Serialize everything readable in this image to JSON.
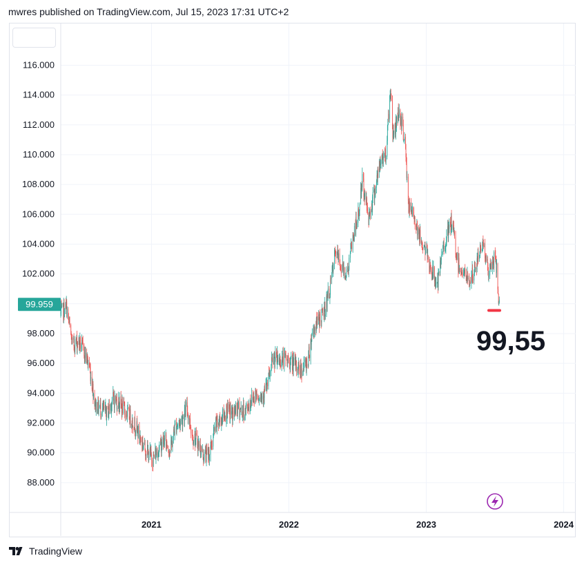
{
  "header": {
    "text": "mwres published on TradingView.com, Jul 15, 2023 17:31 UTC+2"
  },
  "footer": {
    "brand": "TradingView",
    "logo_icon": "tradingview-logo-icon"
  },
  "colors": {
    "up": "#26a69a",
    "down": "#ef5350",
    "last_price_bg": "#26a69a",
    "marker": "#f23645",
    "grid": "#f0f3fa",
    "lightning": "#9c27b0"
  },
  "chart_data": {
    "type": "candlestick",
    "title": "",
    "xlabel": "",
    "ylabel": "",
    "y_ticks": [
      "88.000",
      "90.000",
      "92.000",
      "94.000",
      "96.000",
      "98.000",
      "102.000",
      "104.000",
      "106.000",
      "108.000",
      "110.000",
      "112.000",
      "114.000",
      "116.000"
    ],
    "y_tick_values": [
      88,
      90,
      92,
      94,
      96,
      98,
      102,
      104,
      106,
      108,
      110,
      112,
      114,
      116
    ],
    "x_ticks": [
      "2021",
      "2022",
      "2023",
      "2024"
    ],
    "x_tick_values": [
      "2021-01-01",
      "2022-01-01",
      "2023-01-01",
      "2024-01-01"
    ],
    "ylim": [
      86.0,
      118.8
    ],
    "xlim": [
      "2020-05-05",
      "2024-02-02"
    ],
    "grid": true,
    "last_price": {
      "label": "99.959",
      "value": 99.959
    },
    "annotation": {
      "text": "99,55",
      "value": 99.55
    },
    "series": [
      {
        "frequency": "daily",
        "path": [
          {
            "date": "2020-05-05",
            "value": 99.3
          },
          {
            "date": "2020-05-20",
            "value": 99.8
          },
          {
            "date": "2020-06-05",
            "value": 97.2
          },
          {
            "date": "2020-06-20",
            "value": 97.5
          },
          {
            "date": "2020-07-05",
            "value": 96.9
          },
          {
            "date": "2020-07-20",
            "value": 95.8
          },
          {
            "date": "2020-08-05",
            "value": 93.2
          },
          {
            "date": "2020-08-20",
            "value": 93.0
          },
          {
            "date": "2020-09-05",
            "value": 92.6
          },
          {
            "date": "2020-09-20",
            "value": 93.6
          },
          {
            "date": "2020-10-05",
            "value": 93.4
          },
          {
            "date": "2020-10-20",
            "value": 92.9
          },
          {
            "date": "2020-11-05",
            "value": 92.4
          },
          {
            "date": "2020-11-20",
            "value": 91.8
          },
          {
            "date": "2020-12-05",
            "value": 90.8
          },
          {
            "date": "2020-12-20",
            "value": 90.1
          },
          {
            "date": "2021-01-05",
            "value": 89.6
          },
          {
            "date": "2021-01-20",
            "value": 90.3
          },
          {
            "date": "2021-02-05",
            "value": 90.9
          },
          {
            "date": "2021-02-20",
            "value": 90.1
          },
          {
            "date": "2021-03-05",
            "value": 91.8
          },
          {
            "date": "2021-03-20",
            "value": 92.1
          },
          {
            "date": "2021-04-05",
            "value": 93.0
          },
          {
            "date": "2021-04-20",
            "value": 91.2
          },
          {
            "date": "2021-05-05",
            "value": 90.6
          },
          {
            "date": "2021-05-20",
            "value": 89.8
          },
          {
            "date": "2021-06-05",
            "value": 90.0
          },
          {
            "date": "2021-06-20",
            "value": 91.8
          },
          {
            "date": "2021-07-05",
            "value": 92.3
          },
          {
            "date": "2021-07-20",
            "value": 92.8
          },
          {
            "date": "2021-08-05",
            "value": 92.6
          },
          {
            "date": "2021-08-20",
            "value": 93.0
          },
          {
            "date": "2021-09-05",
            "value": 92.7
          },
          {
            "date": "2021-09-20",
            "value": 93.4
          },
          {
            "date": "2021-10-05",
            "value": 94.0
          },
          {
            "date": "2021-10-20",
            "value": 93.8
          },
          {
            "date": "2021-11-05",
            "value": 94.5
          },
          {
            "date": "2021-11-20",
            "value": 96.3
          },
          {
            "date": "2021-12-05",
            "value": 96.2
          },
          {
            "date": "2021-12-20",
            "value": 96.3
          },
          {
            "date": "2022-01-05",
            "value": 96.1
          },
          {
            "date": "2022-01-20",
            "value": 95.8
          },
          {
            "date": "2022-02-05",
            "value": 95.6
          },
          {
            "date": "2022-02-20",
            "value": 96.1
          },
          {
            "date": "2022-03-05",
            "value": 98.2
          },
          {
            "date": "2022-03-20",
            "value": 98.8
          },
          {
            "date": "2022-04-05",
            "value": 99.5
          },
          {
            "date": "2022-04-20",
            "value": 101.0
          },
          {
            "date": "2022-05-05",
            "value": 103.5
          },
          {
            "date": "2022-05-20",
            "value": 102.5
          },
          {
            "date": "2022-06-05",
            "value": 102.0
          },
          {
            "date": "2022-06-20",
            "value": 104.4
          },
          {
            "date": "2022-07-05",
            "value": 106.0
          },
          {
            "date": "2022-07-15",
            "value": 108.3
          },
          {
            "date": "2022-08-01",
            "value": 105.8
          },
          {
            "date": "2022-08-20",
            "value": 108.0
          },
          {
            "date": "2022-09-05",
            "value": 109.8
          },
          {
            "date": "2022-09-15",
            "value": 110.0
          },
          {
            "date": "2022-09-28",
            "value": 114.5
          },
          {
            "date": "2022-10-05",
            "value": 111.2
          },
          {
            "date": "2022-10-20",
            "value": 113.0
          },
          {
            "date": "2022-11-05",
            "value": 111.0
          },
          {
            "date": "2022-11-15",
            "value": 106.5
          },
          {
            "date": "2022-12-01",
            "value": 105.8
          },
          {
            "date": "2022-12-15",
            "value": 104.4
          },
          {
            "date": "2023-01-01",
            "value": 103.5
          },
          {
            "date": "2023-01-15",
            "value": 102.2
          },
          {
            "date": "2023-02-01",
            "value": 101.3
          },
          {
            "date": "2023-02-15",
            "value": 103.8
          },
          {
            "date": "2023-03-01",
            "value": 104.8
          },
          {
            "date": "2023-03-10",
            "value": 105.5
          },
          {
            "date": "2023-03-25",
            "value": 102.8
          },
          {
            "date": "2023-04-10",
            "value": 102.0
          },
          {
            "date": "2023-04-25",
            "value": 101.5
          },
          {
            "date": "2023-05-10",
            "value": 102.2
          },
          {
            "date": "2023-05-31",
            "value": 104.3
          },
          {
            "date": "2023-06-15",
            "value": 102.0
          },
          {
            "date": "2023-06-30",
            "value": 103.0
          },
          {
            "date": "2023-07-07",
            "value": 102.3
          },
          {
            "date": "2023-07-14",
            "value": 99.8
          }
        ]
      }
    ]
  }
}
